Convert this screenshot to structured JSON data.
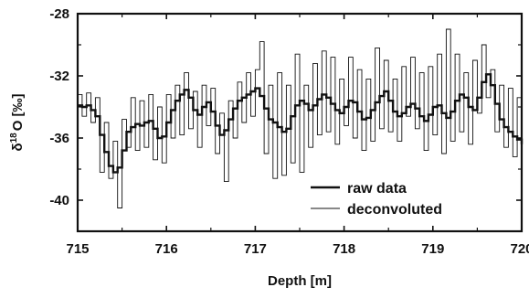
{
  "chart_data": {
    "type": "line",
    "title": "",
    "xlabel": "Depth [m]",
    "ylabel_main": "δ",
    "ylabel_sup": "18",
    "ylabel_tail": "O [‰]",
    "xlim": [
      715,
      720
    ],
    "ylim": [
      -42,
      -28
    ],
    "x_ticks": [
      715,
      716,
      717,
      718,
      719,
      720
    ],
    "y_ticks": [
      -40,
      -36,
      -32,
      -28
    ],
    "x_tick_labels": [
      "715",
      "716",
      "717",
      "718",
      "719",
      "720"
    ],
    "y_tick_labels": [
      "-40",
      "-36",
      "-32",
      "-28"
    ],
    "grid": false,
    "legend_position": "bottom-right",
    "series": [
      {
        "name": "raw data",
        "line_width": "thick",
        "x": [
          715.0,
          715.05,
          715.1,
          715.15,
          715.2,
          715.25,
          715.3,
          715.35,
          715.4,
          715.45,
          715.5,
          715.55,
          715.6,
          715.65,
          715.7,
          715.75,
          715.8,
          715.85,
          715.9,
          715.95,
          716.0,
          716.05,
          716.1,
          716.15,
          716.2,
          716.25,
          716.3,
          716.35,
          716.4,
          716.45,
          716.5,
          716.55,
          716.6,
          716.65,
          716.7,
          716.75,
          716.8,
          716.85,
          716.9,
          716.95,
          717.0,
          717.05,
          717.1,
          717.15,
          717.2,
          717.25,
          717.3,
          717.35,
          717.4,
          717.45,
          717.5,
          717.55,
          717.6,
          717.65,
          717.7,
          717.75,
          717.8,
          717.85,
          717.9,
          717.95,
          718.0,
          718.05,
          718.1,
          718.15,
          718.2,
          718.25,
          718.3,
          718.35,
          718.4,
          718.45,
          718.5,
          718.55,
          718.6,
          718.65,
          718.7,
          718.75,
          718.8,
          718.85,
          718.9,
          718.95,
          719.0,
          719.05,
          719.1,
          719.15,
          719.2,
          719.25,
          719.3,
          719.35,
          719.4,
          719.45,
          719.5,
          719.55,
          719.6,
          719.65,
          719.7,
          719.75,
          719.8,
          719.85,
          719.9,
          719.95,
          720.0
        ],
        "values": [
          -33.9,
          -34.0,
          -33.9,
          -34.2,
          -34.6,
          -35.8,
          -36.9,
          -37.8,
          -38.2,
          -37.9,
          -36.8,
          -35.6,
          -35.3,
          -35.1,
          -35.2,
          -35.0,
          -34.9,
          -35.4,
          -36.0,
          -35.9,
          -35.0,
          -34.2,
          -33.6,
          -33.2,
          -32.9,
          -33.4,
          -34.2,
          -34.5,
          -34.0,
          -33.7,
          -34.3,
          -35.2,
          -35.8,
          -35.5,
          -34.8,
          -34.1,
          -33.6,
          -33.4,
          -33.2,
          -33.0,
          -32.8,
          -33.3,
          -34.1,
          -34.8,
          -35.0,
          -35.3,
          -35.6,
          -35.4,
          -34.6,
          -33.9,
          -33.6,
          -33.8,
          -34.2,
          -33.9,
          -33.5,
          -33.2,
          -33.4,
          -33.8,
          -34.2,
          -34.4,
          -34.0,
          -33.6,
          -33.7,
          -34.3,
          -34.8,
          -34.7,
          -34.2,
          -33.7,
          -33.3,
          -33.0,
          -33.6,
          -34.3,
          -34.6,
          -34.4,
          -34.0,
          -33.8,
          -34.1,
          -34.6,
          -34.9,
          -34.5,
          -34.0,
          -33.9,
          -34.4,
          -34.7,
          -34.3,
          -33.6,
          -33.2,
          -33.4,
          -34.0,
          -34.2,
          -33.4,
          -32.4,
          -31.9,
          -32.6,
          -33.8,
          -34.8,
          -35.3,
          -35.6,
          -35.9,
          -36.1,
          -36.4
        ]
      },
      {
        "name": "deconvoluted",
        "line_width": "thin",
        "x": [
          715.0,
          715.05,
          715.1,
          715.15,
          715.2,
          715.25,
          715.3,
          715.35,
          715.4,
          715.45,
          715.5,
          715.55,
          715.6,
          715.65,
          715.7,
          715.75,
          715.8,
          715.85,
          715.9,
          715.95,
          716.0,
          716.05,
          716.1,
          716.15,
          716.2,
          716.25,
          716.3,
          716.35,
          716.4,
          716.45,
          716.5,
          716.55,
          716.6,
          716.65,
          716.7,
          716.75,
          716.8,
          716.85,
          716.9,
          716.95,
          717.0,
          717.05,
          717.1,
          717.15,
          717.2,
          717.25,
          717.3,
          717.35,
          717.4,
          717.45,
          717.5,
          717.55,
          717.6,
          717.65,
          717.7,
          717.75,
          717.8,
          717.85,
          717.9,
          717.95,
          718.0,
          718.05,
          718.1,
          718.15,
          718.2,
          718.25,
          718.3,
          718.35,
          718.4,
          718.45,
          718.5,
          718.55,
          718.6,
          718.65,
          718.7,
          718.75,
          718.8,
          718.85,
          718.9,
          718.95,
          719.0,
          719.05,
          719.1,
          719.15,
          719.2,
          719.25,
          719.3,
          719.35,
          719.4,
          719.45,
          719.5,
          719.55,
          719.6,
          719.65,
          719.7,
          719.75,
          719.8,
          719.85,
          719.9,
          719.95,
          720.0
        ],
        "values": [
          -33.2,
          -34.6,
          -33.1,
          -35.0,
          -33.4,
          -38.2,
          -35.0,
          -38.6,
          -36.2,
          -40.5,
          -34.8,
          -36.6,
          -33.4,
          -36.8,
          -33.6,
          -36.6,
          -33.2,
          -37.4,
          -34.0,
          -37.6,
          -33.2,
          -36.0,
          -32.6,
          -35.8,
          -31.8,
          -35.4,
          -33.0,
          -36.6,
          -32.6,
          -35.2,
          -32.8,
          -37.0,
          -34.4,
          -38.8,
          -33.6,
          -36.0,
          -32.4,
          -35.0,
          -31.8,
          -34.6,
          -31.6,
          -29.8,
          -37.0,
          -32.6,
          -38.6,
          -31.8,
          -38.4,
          -32.6,
          -37.6,
          -30.6,
          -38.2,
          -32.6,
          -36.6,
          -31.2,
          -35.8,
          -30.4,
          -35.6,
          -30.8,
          -36.4,
          -32.2,
          -35.2,
          -30.8,
          -36.0,
          -31.6,
          -36.8,
          -32.2,
          -36.2,
          -30.2,
          -35.4,
          -31.0,
          -35.6,
          -32.2,
          -36.2,
          -31.4,
          -34.6,
          -30.8,
          -35.4,
          -31.8,
          -36.8,
          -31.4,
          -35.8,
          -30.6,
          -37.0,
          -29.0,
          -36.2,
          -30.6,
          -35.6,
          -31.8,
          -36.4,
          -31.0,
          -34.4,
          -30.0,
          -33.4,
          -31.6,
          -35.6,
          -32.6,
          -36.6,
          -32.8,
          -37.2,
          -33.4,
          -38.4
        ]
      }
    ],
    "legend": [
      {
        "label": "raw data"
      },
      {
        "label": "deconvoluted"
      }
    ]
  }
}
